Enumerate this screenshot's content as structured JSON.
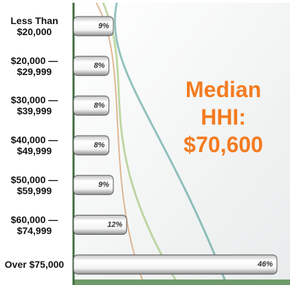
{
  "chart_data": {
    "type": "bar",
    "orientation": "horizontal",
    "categories": [
      "Less Than $20,000",
      "$20,000 — $29,999",
      "$30,000 — $39,999",
      "$40,000 — $49,999",
      "$50,000 — $59,999",
      "$60,000 — $74,999",
      "Over $75,000"
    ],
    "values": [
      9,
      8,
      8,
      8,
      9,
      12,
      46
    ],
    "value_labels": [
      "9%",
      "8%",
      "8%",
      "8%",
      "9%",
      "12%",
      "46%"
    ],
    "annotation": "Median HHI: $70,600",
    "annotation_color": "#f47b20",
    "axis_color": "#3e6b3e"
  }
}
